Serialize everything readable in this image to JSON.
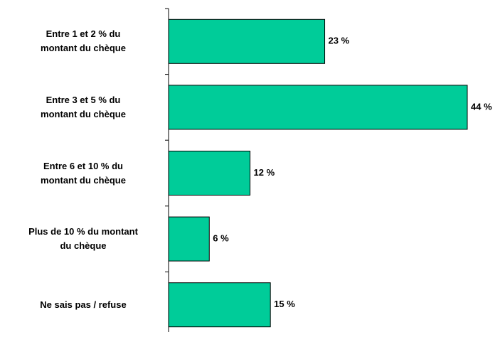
{
  "chart_data": {
    "type": "bar",
    "orientation": "horizontal",
    "categories": [
      "Entre 1 et 2 % du\nmontant du chèque",
      "Entre 3 et 5 % du\nmontant du chèque",
      "Entre 6 et 10 % du\nmontant du chèque",
      "Plus de 10 % du montant\ndu chèque",
      "Ne sais pas / refuse"
    ],
    "values": [
      23,
      44,
      12,
      6,
      15
    ],
    "value_labels": [
      "23 %",
      "44 %",
      "12 %",
      "6 %",
      "15 %"
    ],
    "color": "#00cc99"
  }
}
